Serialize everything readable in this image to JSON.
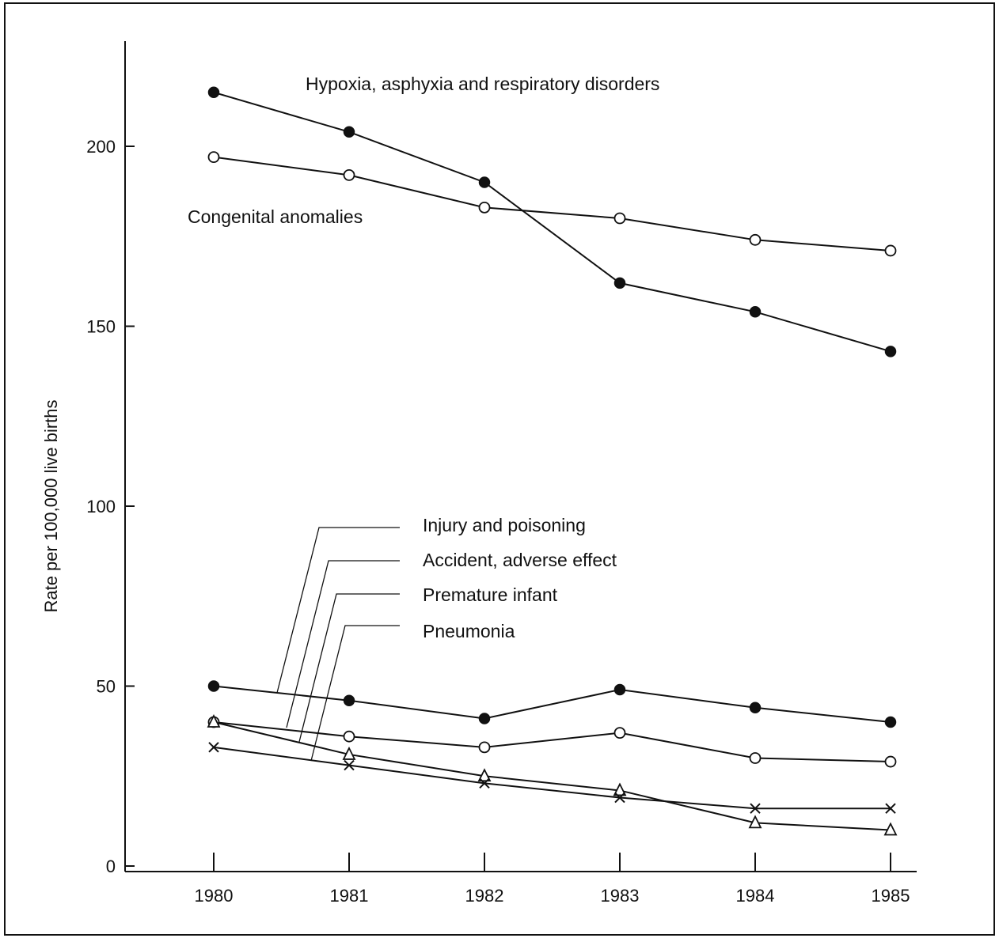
{
  "chart_data": {
    "type": "line",
    "title": "",
    "xlabel": "",
    "ylabel": "Rate per 100,000 live births",
    "x": [
      1980,
      1981,
      1982,
      1983,
      1984,
      1985
    ],
    "x_tick_labels": [
      "1980",
      "1981",
      "1982",
      "1983",
      "1984",
      "1985"
    ],
    "y_ticks": [
      0,
      50,
      100,
      150,
      200
    ],
    "y_tick_labels": [
      "0",
      "50",
      "100",
      "150",
      "200"
    ],
    "ylim": [
      0,
      230
    ],
    "xlim": [
      1979.4,
      1985.2
    ],
    "grid": false,
    "series": [
      {
        "name": "Hypoxia, asphyxia and respiratory disorders",
        "marker": "filled-circle",
        "values": [
          215,
          204,
          190,
          162,
          154,
          143
        ]
      },
      {
        "name": "Congenital anomalies",
        "marker": "open-circle",
        "values": [
          197,
          192,
          183,
          180,
          174,
          171
        ]
      },
      {
        "name": "Injury and poisoning",
        "marker": "filled-circle",
        "values": [
          50,
          46,
          41,
          49,
          44,
          40
        ]
      },
      {
        "name": "Accident, adverse effect",
        "marker": "open-circle",
        "values": [
          40,
          36,
          33,
          37,
          30,
          29
        ]
      },
      {
        "name": "Premature infant",
        "marker": "open-triangle",
        "values": [
          40,
          31,
          25,
          21,
          12,
          10
        ]
      },
      {
        "name": "Pneumonia",
        "marker": "cross",
        "values": [
          33,
          28,
          23,
          19,
          16,
          16
        ]
      }
    ]
  }
}
